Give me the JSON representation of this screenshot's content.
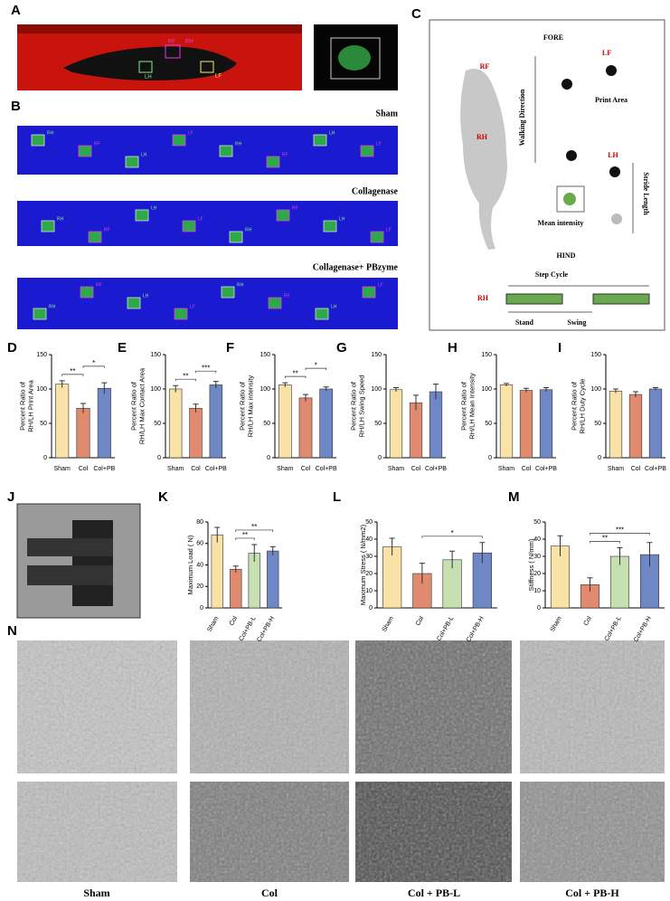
{
  "panel_letters": [
    "A",
    "B",
    "C",
    "D",
    "E",
    "F",
    "G",
    "H",
    "I",
    "J",
    "K",
    "L",
    "M",
    "N"
  ],
  "panel_a": {
    "labels": [
      "RH",
      "RF",
      "LH",
      "LF"
    ]
  },
  "panel_b": {
    "groups": [
      "Sham",
      "Collagenase",
      "Collagenase+ PBzyme"
    ]
  },
  "panel_c": {
    "fore": "FORE",
    "rf": "RF",
    "lf": "LF",
    "print_area": "Print Area",
    "walking": "Walking Direction",
    "rh": "RH",
    "lh": "LH",
    "mean_intensity": "Mean intensity",
    "stride": "Stride Length",
    "hind": "HIND",
    "step_cycle": "Step Cycle",
    "stand": "Stand",
    "swing": "Swing"
  },
  "chart_data": [
    {
      "type": "bar",
      "ylabel": [
        "Percent Ratio of",
        "RH/LH Print Area"
      ],
      "categories": [
        "Sham",
        "Col",
        "Col+PB"
      ],
      "values": [
        107,
        72,
        101
      ],
      "errors": [
        5,
        7,
        8
      ],
      "colors": [
        "#f9e2a6",
        "#e08a6f",
        "#6f87c5"
      ],
      "ylim": [
        0,
        150
      ],
      "yticks": [
        0,
        50,
        100,
        150
      ],
      "annotations": [
        {
          "label": "**",
          "between": [
            "Sham",
            "Col"
          ]
        },
        {
          "label": "*",
          "between": [
            "Col",
            "Col+PB"
          ]
        }
      ]
    },
    {
      "type": "bar",
      "ylabel": [
        "Percent Ratio of",
        "RH/LH Max Contact Area"
      ],
      "categories": [
        "Sham",
        "Col",
        "Col+PB"
      ],
      "values": [
        100,
        72,
        106
      ],
      "errors": [
        5,
        6,
        5
      ],
      "colors": [
        "#f9e2a6",
        "#e08a6f",
        "#6f87c5"
      ],
      "ylim": [
        0,
        150
      ],
      "yticks": [
        0,
        50,
        100,
        150
      ],
      "annotations": [
        {
          "label": "**",
          "between": [
            "Sham",
            "Col"
          ]
        },
        {
          "label": "***",
          "between": [
            "Col",
            "Col+PB"
          ]
        }
      ]
    },
    {
      "type": "bar",
      "ylabel": [
        "Percent Ratio of",
        "RH/LH Max intensity"
      ],
      "categories": [
        "Sham",
        "Col",
        "Col+PB"
      ],
      "values": [
        106,
        87,
        100
      ],
      "errors": [
        3,
        5,
        3
      ],
      "colors": [
        "#f9e2a6",
        "#e08a6f",
        "#6f87c5"
      ],
      "ylim": [
        0,
        150
      ],
      "yticks": [
        0,
        50,
        100,
        150
      ],
      "annotations": [
        {
          "label": "**",
          "between": [
            "Sham",
            "Col"
          ]
        },
        {
          "label": "*",
          "between": [
            "Col",
            "Col+PB"
          ]
        }
      ]
    },
    {
      "type": "bar",
      "ylabel": [
        "Percent Ratio of",
        "RH/LH Swing Speed"
      ],
      "categories": [
        "Sham",
        "Col",
        "Col+PB"
      ],
      "values": [
        99,
        80,
        96
      ],
      "errors": [
        3,
        11,
        11
      ],
      "colors": [
        "#f9e2a6",
        "#e08a6f",
        "#6f87c5"
      ],
      "ylim": [
        0,
        150
      ],
      "yticks": [
        0,
        50,
        100,
        150
      ],
      "annotations": []
    },
    {
      "type": "bar",
      "ylabel": [
        "Percent Ratio of",
        "RH/LH Mean Intensity"
      ],
      "categories": [
        "Sham",
        "Col",
        "Col+PB"
      ],
      "values": [
        106,
        98,
        99
      ],
      "errors": [
        2,
        3,
        3
      ],
      "colors": [
        "#f9e2a6",
        "#e08a6f",
        "#6f87c5"
      ],
      "ylim": [
        0,
        150
      ],
      "yticks": [
        0,
        50,
        100,
        150
      ],
      "annotations": []
    },
    {
      "type": "bar",
      "ylabel": [
        "Percent Ratio of",
        "RH/LH Duty Cycle"
      ],
      "categories": [
        "Sham",
        "Col",
        "Col+PB"
      ],
      "values": [
        97,
        92,
        100
      ],
      "errors": [
        3,
        4,
        2
      ],
      "colors": [
        "#f9e2a6",
        "#e08a6f",
        "#6f87c5"
      ],
      "ylim": [
        0,
        150
      ],
      "yticks": [
        0,
        50,
        100,
        150
      ],
      "annotations": []
    },
    {
      "type": "bar",
      "ylabel": [
        "Maximum Load ( N)"
      ],
      "categories": [
        "Sham",
        "Col",
        "Col+PB-L",
        "Col+PB-H"
      ],
      "values": [
        68,
        36,
        51,
        53
      ],
      "errors": [
        7,
        3,
        8,
        4
      ],
      "colors": [
        "#f9e2a6",
        "#e08a6f",
        "#c6e0b2",
        "#6f87c5"
      ],
      "ylim": [
        0,
        80
      ],
      "yticks": [
        0,
        20,
        40,
        60,
        80
      ],
      "annotations": [
        {
          "label": "**",
          "between": [
            "Col",
            "Col+PB-L"
          ]
        },
        {
          "label": "**",
          "between": [
            "Col",
            "Col+PB-H"
          ]
        }
      ]
    },
    {
      "type": "bar",
      "ylabel": [
        "Maximum Stress ( N/mm2)"
      ],
      "categories": [
        "Sham",
        "Col",
        "Col+PB-L",
        "Col+PB-H"
      ],
      "values": [
        35.5,
        20,
        28,
        32
      ],
      "errors": [
        5,
        6,
        5,
        6
      ],
      "colors": [
        "#f9e2a6",
        "#e08a6f",
        "#c6e0b2",
        "#6f87c5"
      ],
      "ylim": [
        0,
        50
      ],
      "yticks": [
        0,
        10,
        20,
        30,
        40,
        50
      ],
      "annotations": [
        {
          "label": "*",
          "between": [
            "Col",
            "Col+PB-H"
          ]
        }
      ]
    },
    {
      "type": "bar",
      "ylabel": [
        "Stiffness ( N/mm)"
      ],
      "categories": [
        "Sham",
        "Col",
        "Col+PB-L",
        "Col+PB-H"
      ],
      "values": [
        36,
        13.5,
        30,
        31
      ],
      "errors": [
        6,
        4,
        5,
        7
      ],
      "colors": [
        "#f9e2a6",
        "#e08a6f",
        "#c6e0b2",
        "#6f87c5"
      ],
      "ylim": [
        0,
        50
      ],
      "yticks": [
        0,
        10,
        20,
        30,
        40,
        50
      ],
      "annotations": [
        {
          "label": "**",
          "between": [
            "Col",
            "Col+PB-L"
          ]
        },
        {
          "label": "***",
          "between": [
            "Col",
            "Col+PB-H"
          ]
        }
      ]
    }
  ],
  "panel_n": {
    "groups": [
      "Sham",
      "Col",
      "Col + PB-L",
      "Col + PB-H"
    ]
  }
}
